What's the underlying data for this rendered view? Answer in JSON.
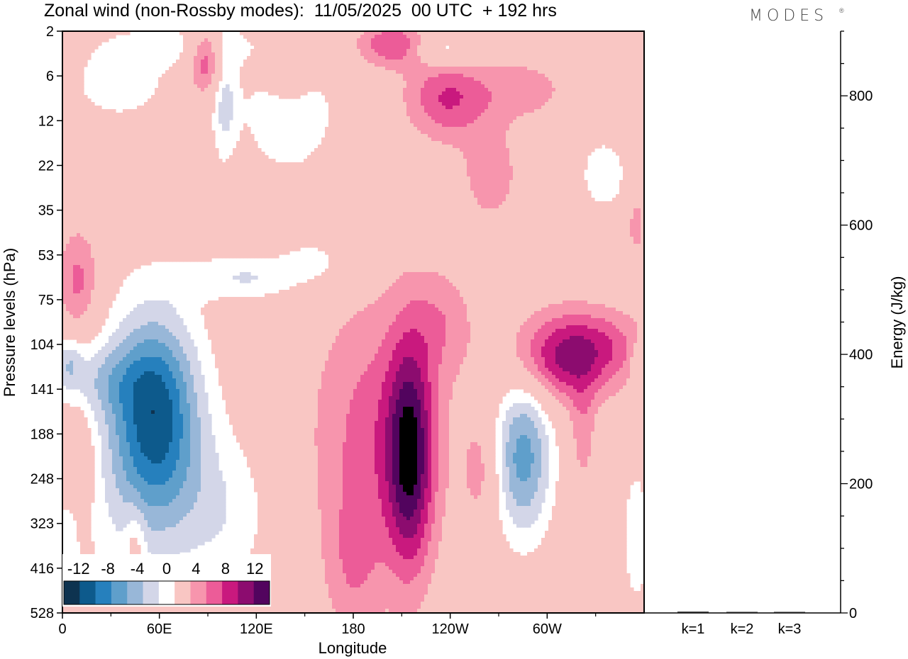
{
  "title": "Zonal wind (non-Rossby modes):  11/05/2025  00 UTC  + 192 hrs",
  "logo": "MODES",
  "logo_mark": "®",
  "chart_data": [
    {
      "type": "heatmap",
      "title": "Zonal wind (non-Rossby modes):  11/05/2025  00 UTC  + 192 hrs",
      "xlabel": "Longitude",
      "ylabel": "Pressure levels (hPa)",
      "x_ticks": [
        "0",
        "60E",
        "120E",
        "180",
        "120W",
        "60W"
      ],
      "x_tick_degrees": [
        0,
        60,
        120,
        180,
        240,
        300
      ],
      "xlim": [
        0,
        360
      ],
      "y_ticks": [
        "2",
        "6",
        "12",
        "22",
        "35",
        "53",
        "75",
        "104",
        "141",
        "188",
        "248",
        "323",
        "416",
        "528"
      ],
      "y_scale": "level index (pressure levels, top = 2 hPa, bottom = 528 hPa)",
      "colorbar": {
        "labels": [
          "-12",
          "-8",
          "-4",
          "0",
          "4",
          "8",
          "12"
        ],
        "levels": [
          -14,
          -12,
          -10,
          -8,
          -6,
          -4,
          -2,
          2,
          4,
          6,
          8,
          10,
          12,
          14
        ],
        "colors": [
          "#0e3350",
          "#0d5a8c",
          "#2680bd",
          "#5f9fcb",
          "#98b7d8",
          "#d3d6e8",
          "#ffffff",
          "#f9c6c3",
          "#f795ad",
          "#ec5c98",
          "#c9197e",
          "#8c0c6f",
          "#52045e"
        ]
      },
      "features": [
        {
          "lon": 58,
          "level": 8.6,
          "lon_half_width": 26,
          "level_half_width": 2.2,
          "value": -10
        },
        {
          "lon": 47,
          "level": 9.5,
          "lon_half_width": 45,
          "level_half_width": 3.5,
          "value": -4
        },
        {
          "lon": 100,
          "level": 10.8,
          "lon_half_width": 30,
          "level_half_width": 1.8,
          "value": -3
        },
        {
          "lon": 195,
          "level": 9.0,
          "lon_half_width": 40,
          "level_half_width": 3.0,
          "value": 5
        },
        {
          "lon": 215,
          "level": 9.5,
          "lon_half_width": 14,
          "level_half_width": 2.5,
          "value": 10
        },
        {
          "lon": 180,
          "level": 12.0,
          "lon_half_width": 18,
          "level_half_width": 1.7,
          "value": 3
        },
        {
          "lon": 285,
          "level": 9.5,
          "lon_half_width": 18,
          "level_half_width": 1.8,
          "value": -9
        },
        {
          "lon": 310,
          "level": 7.3,
          "lon_half_width": 32,
          "level_half_width": 1.0,
          "value": 8
        },
        {
          "lon": 338,
          "level": 7.0,
          "lon_half_width": 30,
          "level_half_width": 0.8,
          "value": 3
        },
        {
          "lon": 238,
          "level": 1.5,
          "lon_half_width": 25,
          "level_half_width": 0.9,
          "value": 6
        },
        {
          "lon": 285,
          "level": 1.3,
          "lon_half_width": 30,
          "level_half_width": 0.7,
          "value": 3
        },
        {
          "lon": 265,
          "level": 3.2,
          "lon_half_width": 20,
          "level_half_width": 1.2,
          "value": 3
        },
        {
          "lon": 335,
          "level": 3.2,
          "lon_half_width": 18,
          "level_half_width": 1.0,
          "value": -3
        },
        {
          "lon": 140,
          "level": 1.8,
          "lon_half_width": 30,
          "level_half_width": 1.4,
          "value": -4
        },
        {
          "lon": 35,
          "level": 1.2,
          "lon_half_width": 35,
          "level_half_width": 0.9,
          "value": -3
        },
        {
          "lon": 75,
          "level": 0.3,
          "lon_half_width": 50,
          "level_half_width": 0.5,
          "value": -3
        },
        {
          "lon": 90,
          "level": 0.6,
          "lon_half_width": 12,
          "level_half_width": 0.8,
          "value": 7
        },
        {
          "lon": 100,
          "level": 1.3,
          "lon_half_width": 8,
          "level_half_width": 1.5,
          "value": -5
        },
        {
          "lon": 140,
          "level": 0.8,
          "lon_half_width": 14,
          "level_half_width": 0.8,
          "value": 4
        },
        {
          "lon": 205,
          "level": 0.3,
          "lon_half_width": 22,
          "level_half_width": 0.5,
          "value": 6
        },
        {
          "lon": 235,
          "level": 0.4,
          "lon_half_width": 20,
          "level_half_width": 0.4,
          "value": -4
        },
        {
          "lon": 10,
          "level": 5.6,
          "lon_half_width": 13,
          "level_half_width": 1.2,
          "value": 5
        },
        {
          "lon": 115,
          "level": 5.5,
          "lon_half_width": 40,
          "level_half_width": 0.5,
          "value": -4
        },
        {
          "lon": 155,
          "level": 5.1,
          "lon_half_width": 18,
          "level_half_width": 0.4,
          "value": -3
        },
        {
          "lon": 25,
          "level": 7.8,
          "lon_half_width": 30,
          "level_half_width": 0.8,
          "value": -3
        },
        {
          "lon": 235,
          "level": 6.5,
          "lon_half_width": 20,
          "level_half_width": 1.2,
          "value": 3
        },
        {
          "lon": 10,
          "level": 9.5,
          "lon_half_width": 12,
          "level_half_width": 1.3,
          "value": 3
        },
        {
          "lon": 260,
          "level": 9.8,
          "lon_half_width": 12,
          "level_half_width": 1.3,
          "value": 3
        },
        {
          "lon": 322,
          "level": 9.0,
          "lon_half_width": 8,
          "level_half_width": 1.3,
          "value": 3
        },
        {
          "lon": 355,
          "level": 11.3,
          "lon_half_width": 8,
          "level_half_width": 1.5,
          "value": -4
        },
        {
          "lon": 45,
          "level": 11.4,
          "lon_half_width": 6,
          "level_half_width": 0.8,
          "value": 3
        },
        {
          "lon": 3,
          "level": 11.5,
          "lon_half_width": 6,
          "level_half_width": 1.0,
          "value": -3
        },
        {
          "lon": 4,
          "level": 7.4,
          "lon_half_width": 8,
          "level_half_width": 0.6,
          "value": -4
        },
        {
          "lon": 358,
          "level": 7.4,
          "lon_half_width": 6,
          "level_half_width": 0.5,
          "value": -4
        },
        {
          "lon": 355,
          "level": 4.3,
          "lon_half_width": 6,
          "level_half_width": 0.8,
          "value": 3
        }
      ]
    },
    {
      "type": "bar",
      "categories": [
        "k=1",
        "k=2",
        "k=3"
      ],
      "values": [
        2,
        1,
        0.5
      ],
      "ylabel": "Energy (J/kg)",
      "y_ticks": [
        "0",
        "200",
        "400",
        "600",
        "800"
      ],
      "ylim": [
        0,
        900
      ]
    }
  ]
}
